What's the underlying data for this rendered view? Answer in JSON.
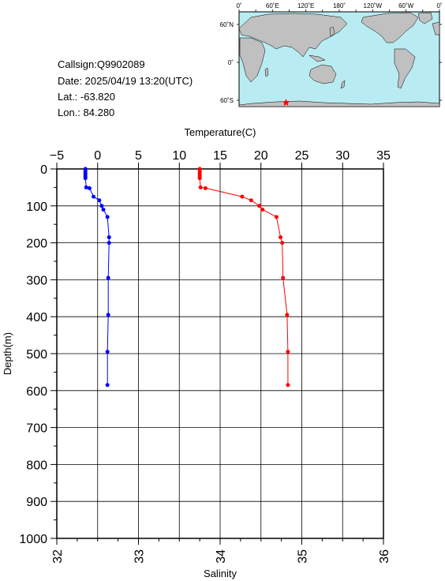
{
  "info": {
    "callsign": "Callsign:Q9902089",
    "date": "Date:  2025/04/19 13:20(UTC)",
    "lat": "Lat.:  -63.820",
    "lon": "Lon.:   84.280"
  },
  "map": {
    "top_labels": [
      "0˚",
      "60˚E",
      "120˚E",
      "180˚",
      "120˚W",
      "60˚W",
      "0˚"
    ],
    "right_labels": [
      "60˚N",
      "0˚",
      "60˚S"
    ],
    "marker": {
      "lon": 84.28,
      "lat": -63.82
    },
    "colors": {
      "ocean": "#b8ecf2",
      "land": "#c0c0c0",
      "marker": "#ff0000"
    }
  },
  "chart_data": {
    "type": "line",
    "xlabel_top": "Temperature(C)",
    "xlabel_bottom": "Salinity",
    "ylabel": "Depth(m)",
    "temperature_ticks": [
      "−5",
      "0",
      "5",
      "10",
      "15",
      "20",
      "25",
      "30",
      "35"
    ],
    "salinity_ticks": [
      "32",
      "33",
      "34",
      "35",
      "36"
    ],
    "depth_ticks": [
      "0",
      "100",
      "200",
      "300",
      "400",
      "500",
      "600",
      "700",
      "800",
      "900",
      "1000"
    ],
    "xlim_temperature": [
      -5,
      35
    ],
    "xlim_salinity": [
      32,
      36
    ],
    "ylim_depth": [
      0,
      1000
    ],
    "grid": true,
    "series": [
      {
        "name": "Temperature(C)",
        "color": "#ff0000",
        "axis": "temperature",
        "points": [
          [
            12.5,
            0
          ],
          [
            12.5,
            5
          ],
          [
            12.5,
            10
          ],
          [
            12.5,
            15
          ],
          [
            12.5,
            20
          ],
          [
            12.5,
            25
          ],
          [
            12.6,
            50
          ],
          [
            13.2,
            52
          ],
          [
            17.7,
            75
          ],
          [
            18.8,
            85
          ],
          [
            19.8,
            100
          ],
          [
            20.2,
            110
          ],
          [
            21.9,
            130
          ],
          [
            22.4,
            185
          ],
          [
            22.6,
            200
          ],
          [
            22.7,
            295
          ],
          [
            23.2,
            395
          ],
          [
            23.3,
            495
          ],
          [
            23.3,
            585
          ]
        ]
      },
      {
        "name": "Salinity",
        "color": "#0000ff",
        "axis": "salinity",
        "points": [
          [
            32.35,
            0
          ],
          [
            32.35,
            5
          ],
          [
            32.35,
            10
          ],
          [
            32.35,
            15
          ],
          [
            32.35,
            20
          ],
          [
            32.35,
            25
          ],
          [
            32.36,
            50
          ],
          [
            32.4,
            52
          ],
          [
            32.45,
            75
          ],
          [
            32.52,
            85
          ],
          [
            32.55,
            100
          ],
          [
            32.57,
            110
          ],
          [
            32.62,
            130
          ],
          [
            32.64,
            185
          ],
          [
            32.64,
            200
          ],
          [
            32.63,
            295
          ],
          [
            32.63,
            395
          ],
          [
            32.62,
            495
          ],
          [
            32.62,
            585
          ]
        ]
      }
    ]
  }
}
